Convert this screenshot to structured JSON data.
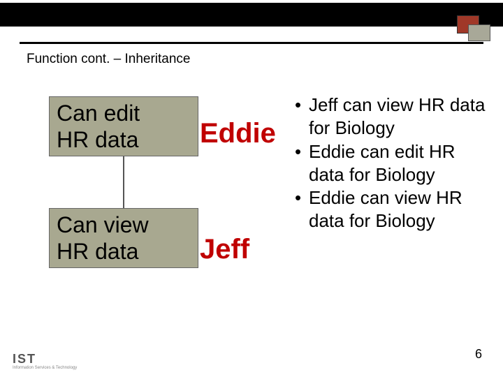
{
  "header": {
    "title": "Function cont. – Inheritance",
    "top_bar_color": "#000000",
    "accent_square1_color": "#a03828",
    "accent_square2_color": "#a8a898"
  },
  "diagram": {
    "box1": {
      "line1": "Can edit",
      "line2": "HR data",
      "bg": "#a8a890"
    },
    "box2": {
      "line1": "Can view",
      "line2": "HR data",
      "bg": "#a8a890"
    },
    "label1": "Eddie",
    "label2": "Jeff",
    "label_color": "#c00000"
  },
  "bullets": {
    "items": [
      {
        "text": "Jeff can view HR data for Biology"
      },
      {
        "text": "Eddie can edit HR data for Biology"
      },
      {
        "text": "Eddie can view HR data for Biology"
      }
    ]
  },
  "footer": {
    "page_number": "6",
    "logo_main": "IST",
    "logo_sub": "Information Services & Technology"
  }
}
